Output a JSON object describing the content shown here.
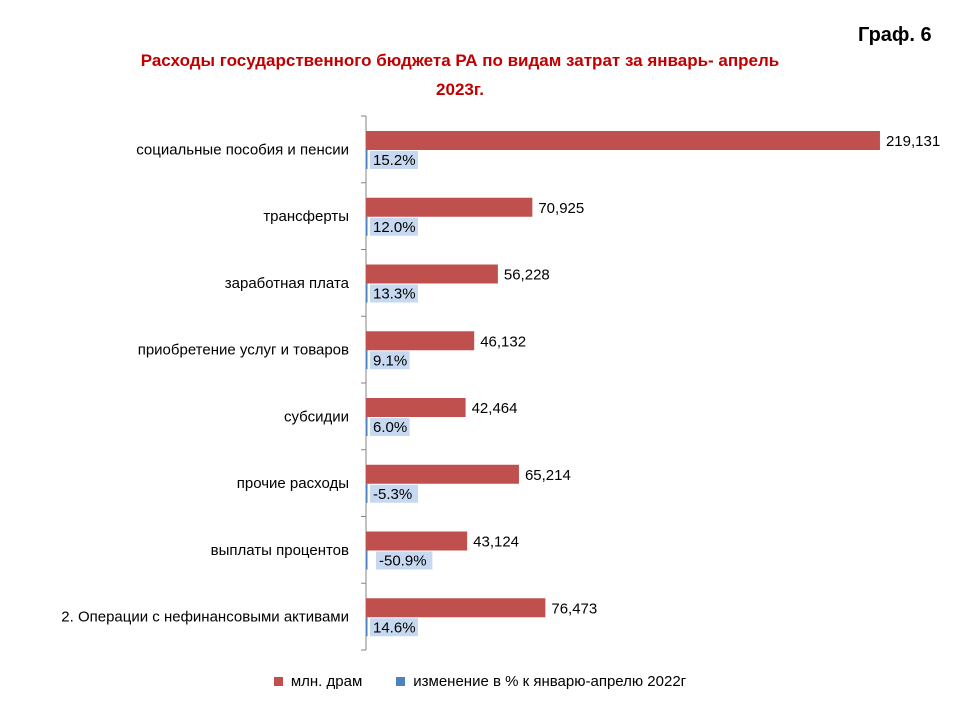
{
  "header": {
    "graph_label": "Граф. 6",
    "title_line1": "Расходы государственного  бюджета РА по видам затрат за январь- апрель",
    "title_line2": "2023г."
  },
  "colors": {
    "series1": "#c0504d",
    "series2": "#4f81bd",
    "pct_label_bg": "#c6d9f1"
  },
  "chart_data": {
    "type": "bar",
    "orientation": "horizontal",
    "title": "Расходы государственного  бюджета РА по видам затрат за январь- апрель 2023г.",
    "categories": [
      "социальные пособия и пенсии",
      "трансферты",
      "заработная плата",
      "приобретение  услуг и товаров",
      "субсидии",
      "прочие расходы",
      "выплаты процентов",
      "2. Операции с нефинансовыми активами"
    ],
    "series": [
      {
        "name": "млн. драм",
        "values": [
          219131,
          70925,
          56228,
          46132,
          42464,
          65214,
          43124,
          76473
        ],
        "labels": [
          "219,131",
          "70,925",
          "56,228",
          "46,132",
          "42,464",
          "65,214",
          "43,124",
          "76,473"
        ]
      },
      {
        "name": "изменение в % к январю-апрелю 2022г",
        "values": [
          15.2,
          12.0,
          13.3,
          9.1,
          6.0,
          -5.3,
          -50.9,
          14.6
        ],
        "labels": [
          "15.2%",
          "12.0%",
          "13.3%",
          "9.1%",
          "6.0%",
          "-5.3%",
          "-50.9%",
          "14.6%"
        ]
      }
    ],
    "xlim": [
      0,
      220000
    ],
    "grid": false,
    "legend_position": "bottom"
  }
}
